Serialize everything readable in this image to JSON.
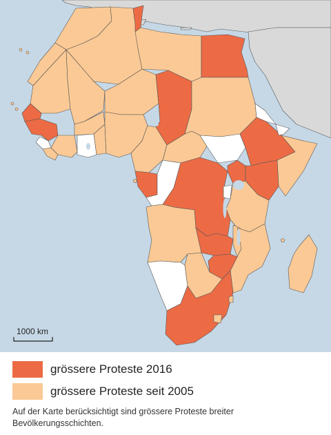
{
  "colors": {
    "sea": "#c6d8e6",
    "other_land": "#d9d9d9",
    "border": "#555555",
    "protest_2016": "#ec6b45",
    "protest_since_2005": "#fbc995",
    "no_protest": "#ffffff",
    "lake": "#c6d8e6"
  },
  "scale": {
    "label": "1000 km"
  },
  "legend": [
    {
      "key": "protest_2016",
      "label": "grössere Proteste 2016"
    },
    {
      "key": "protest_since_2005",
      "label": "grössere Proteste seit 2005"
    }
  ],
  "note": "Auf der Karte berücksichtigt sind grössere Proteste breiter Bevölkerungsschichten."
}
